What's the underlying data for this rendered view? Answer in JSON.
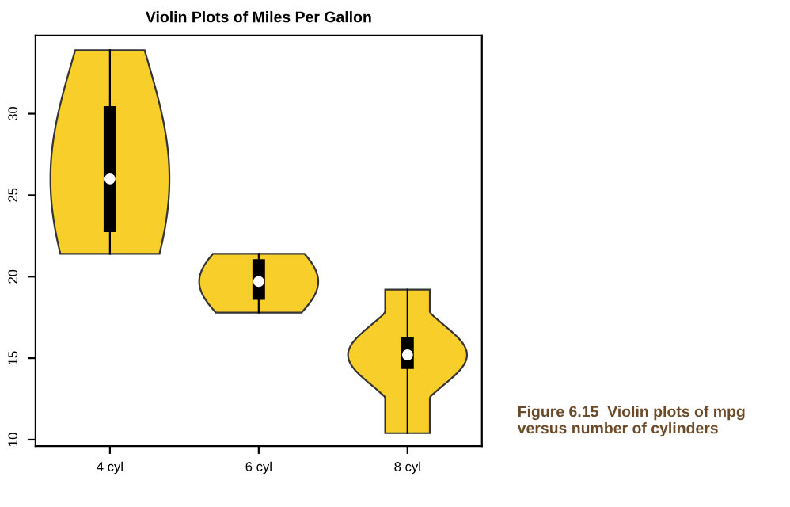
{
  "chart_data": {
    "type": "box",
    "title": "Violin Plots of Miles Per Gallon",
    "categories": [
      "4 cyl",
      "6 cyl",
      "8 cyl"
    ],
    "boxes": [
      {
        "low": 21.4,
        "q1": 22.8,
        "median": 26.0,
        "q3": 30.4,
        "high": 33.9
      },
      {
        "low": 17.8,
        "q1": 18.65,
        "median": 19.7,
        "q3": 21.0,
        "high": 21.4
      },
      {
        "low": 10.4,
        "q1": 14.4,
        "median": 15.2,
        "q3": 16.25,
        "high": 19.2
      }
    ],
    "color": "#000000",
    "ylim": [
      9.6,
      34.8
    ],
    "yticks": [
      10,
      15,
      20,
      25,
      30
    ],
    "grid": false,
    "annotations": [
      "Figure 6.15  Violin plots of mpg versus number of cylinders"
    ]
  }
}
